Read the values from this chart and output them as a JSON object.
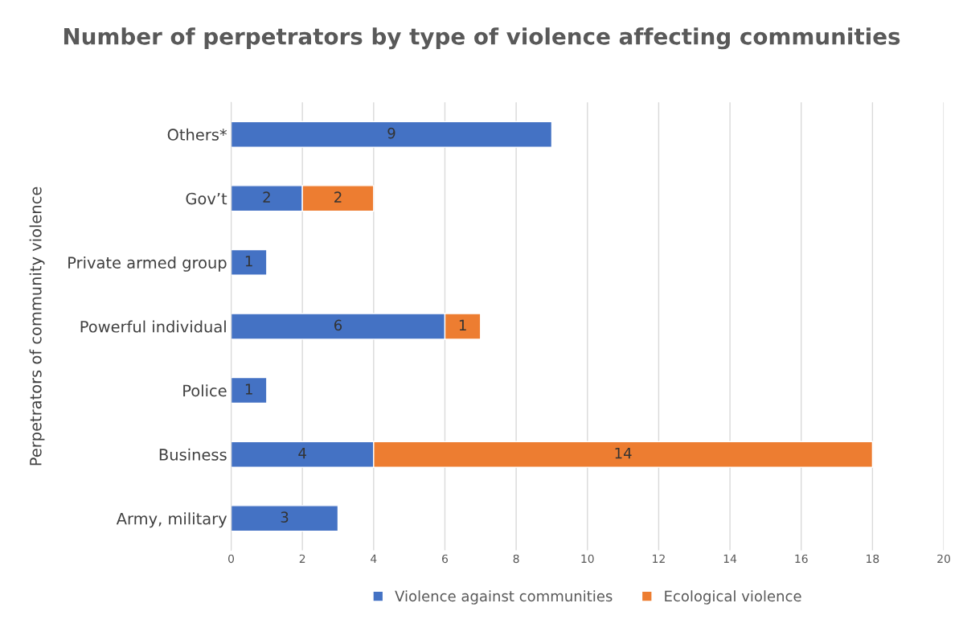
{
  "chart_data": {
    "type": "bar",
    "orientation": "horizontal",
    "stacked": true,
    "title": "Number of perpetrators by type of violence affecting communities",
    "ylabel": "Perpetrators of community violence",
    "categories": [
      "Others*",
      "Gov’t",
      "Private armed group",
      "Powerful individual",
      "Police",
      "Business",
      "Army, military"
    ],
    "series": [
      {
        "name": "Violence against communities",
        "color": "#4472c4",
        "values": [
          9,
          2,
          1,
          6,
          1,
          4,
          3
        ]
      },
      {
        "name": "Ecological violence",
        "color": "#ed7d31",
        "values": [
          null,
          2,
          null,
          1,
          null,
          14,
          null
        ]
      }
    ],
    "xlim": [
      0,
      20
    ],
    "xticks": [
      0,
      2,
      4,
      6,
      8,
      10,
      12,
      14,
      16,
      18,
      20
    ],
    "grid": "x",
    "legend": "bottom",
    "data_labels": true
  }
}
